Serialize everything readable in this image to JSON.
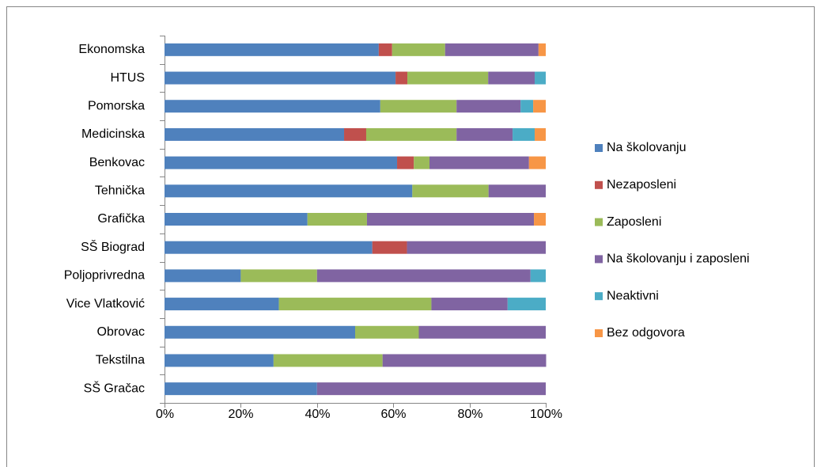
{
  "chart_data": {
    "type": "stacked-bar-horizontal",
    "categories": [
      "Ekonomska",
      "HTUS",
      "Pomorska",
      "Medicinska",
      "Benkovac",
      "Tehnička",
      "Grafička",
      "SŠ Biograd",
      "Poljoprivredna",
      "Vice Vlatković",
      "Obrovac",
      "Tekstilna",
      "SŠ Gračac"
    ],
    "series": [
      {
        "name": "Na školovanju",
        "color": "#4f81bd",
        "values": [
          56.2,
          60.6,
          56.6,
          47.1,
          61,
          65,
          37.5,
          54.5,
          20,
          30,
          50,
          28.6,
          40
        ]
      },
      {
        "name": "Nezaposleni",
        "color": "#c0504d",
        "values": [
          3.5,
          3.1,
          0,
          5.8,
          4.4,
          0,
          0,
          9.1,
          0,
          0,
          0,
          0,
          0
        ]
      },
      {
        "name": "Zaposleni",
        "color": "#9bbb59",
        "values": [
          13.9,
          21.2,
          20,
          23.7,
          4.1,
          20,
          15.6,
          0,
          20,
          40,
          16.7,
          28.6,
          0
        ]
      },
      {
        "name": "Na školovanju i zaposleni",
        "color": "#8064a2",
        "values": [
          24.5,
          12.2,
          16.8,
          14.7,
          26.1,
          15,
          43.8,
          36.4,
          56,
          20,
          33.3,
          42.9,
          60
        ]
      },
      {
        "name": "Neaktivni",
        "color": "#4bacc6",
        "values": [
          0,
          2.9,
          3.3,
          5.8,
          0,
          0,
          0,
          0,
          4,
          10,
          0,
          0,
          0
        ]
      },
      {
        "name": "Bez odgovora",
        "color": "#f79646",
        "values": [
          1.9,
          0,
          3.3,
          2.9,
          4.4,
          0,
          3.1,
          0,
          0,
          0,
          0,
          0,
          0
        ]
      }
    ],
    "xlim": [
      0,
      100
    ],
    "xticks": [
      {
        "value": 0,
        "label": "0%"
      },
      {
        "value": 20,
        "label": "20%"
      },
      {
        "value": 40,
        "label": "40%"
      },
      {
        "value": 60,
        "label": "60%"
      },
      {
        "value": 80,
        "label": "80%"
      },
      {
        "value": 100,
        "label": "100%"
      }
    ],
    "legend": "right"
  }
}
